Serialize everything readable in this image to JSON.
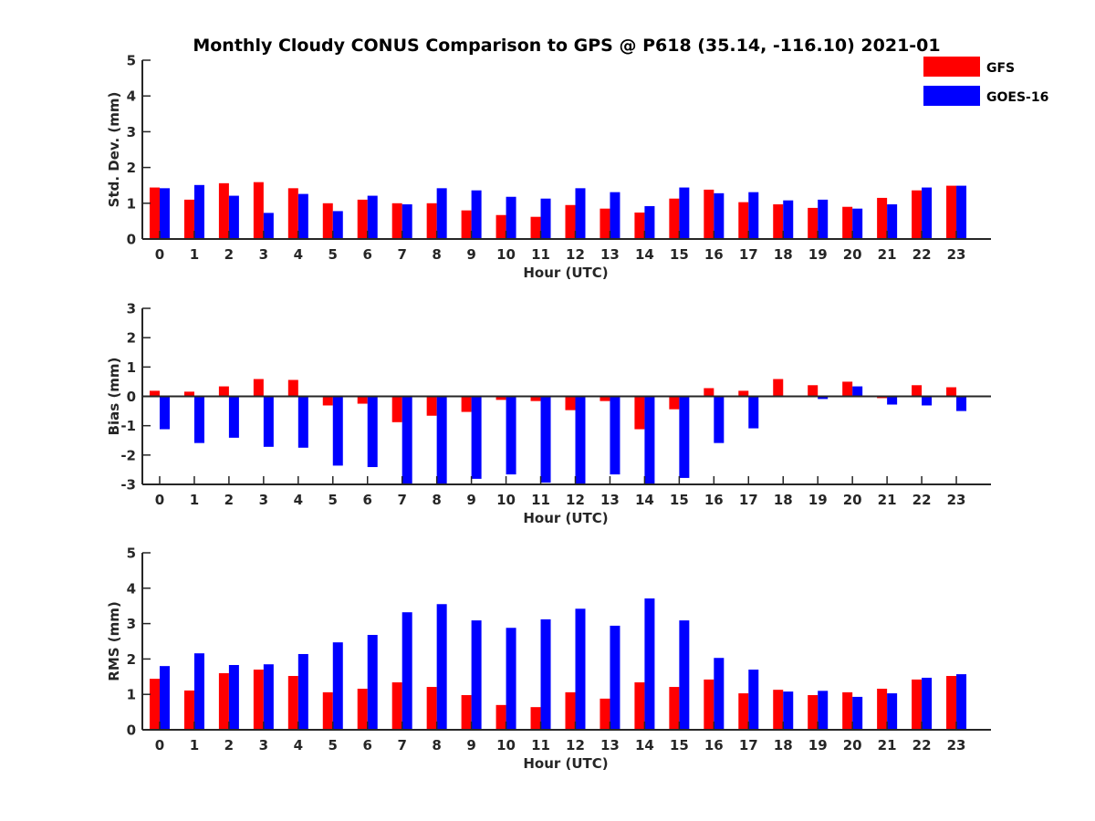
{
  "chart_data": {
    "type": "bar",
    "title": "Monthly Cloudy CONUS Comparison to GPS @ P618 (35.14, -116.10) 2021-01",
    "legend": {
      "placement": "top-right",
      "entries": [
        {
          "name": "GFS",
          "color": "#ff0000"
        },
        {
          "name": "GOES-16",
          "color": "#0000ff"
        }
      ]
    },
    "categories": [
      0,
      1,
      2,
      3,
      4,
      5,
      6,
      7,
      8,
      9,
      10,
      11,
      12,
      13,
      14,
      15,
      16,
      17,
      18,
      19,
      20,
      21,
      22,
      23
    ],
    "panels": [
      {
        "name": "std-dev",
        "xlabel": "Hour (UTC)",
        "ylabel": "Std. Dev. (mm)",
        "ylim": [
          0,
          5
        ],
        "yticks": [
          0,
          1,
          2,
          3,
          4,
          5
        ],
        "grid": false,
        "series": [
          {
            "name": "GFS",
            "values": [
              1.44,
              1.1,
              1.56,
              1.59,
              1.42,
              1.0,
              1.1,
              1.0,
              1.0,
              0.8,
              0.67,
              0.62,
              0.95,
              0.85,
              0.74,
              1.13,
              1.38,
              1.03,
              0.97,
              0.87,
              0.9,
              1.15,
              1.36,
              1.49
            ]
          },
          {
            "name": "GOES-16",
            "values": [
              1.42,
              1.51,
              1.21,
              0.73,
              1.26,
              0.78,
              1.21,
              0.97,
              1.42,
              1.36,
              1.18,
              1.13,
              1.42,
              1.31,
              0.92,
              1.44,
              1.28,
              1.31,
              1.08,
              1.1,
              0.85,
              0.97,
              1.44,
              1.49
            ]
          }
        ]
      },
      {
        "name": "bias",
        "xlabel": "Hour (UTC)",
        "ylabel": "Bias (mm)",
        "ylim": [
          -3,
          3
        ],
        "yticks": [
          -3,
          -2,
          -1,
          0,
          1,
          2,
          3
        ],
        "grid": false,
        "zero_line": true,
        "series": [
          {
            "name": "GFS",
            "values": [
              0.19,
              0.16,
              0.34,
              0.59,
              0.56,
              -0.31,
              -0.25,
              -0.88,
              -0.66,
              -0.53,
              -0.12,
              -0.16,
              -0.47,
              -0.16,
              -1.12,
              -0.44,
              0.28,
              0.19,
              0.59,
              0.38,
              0.5,
              -0.06,
              0.38,
              0.31
            ]
          },
          {
            "name": "GOES-16",
            "values": [
              -1.12,
              -1.59,
              -1.41,
              -1.72,
              -1.75,
              -2.36,
              -2.41,
              -3.25,
              -3.45,
              -2.81,
              -2.66,
              -2.94,
              -3.3,
              -2.66,
              -3.5,
              -2.78,
              -1.59,
              -1.09,
              0.0,
              -0.09,
              0.34,
              -0.28,
              -0.31,
              -0.5
            ]
          }
        ]
      },
      {
        "name": "rms",
        "xlabel": "Hour (UTC)",
        "ylabel": "RMS (mm)",
        "ylim": [
          0,
          5
        ],
        "yticks": [
          0,
          1,
          2,
          3,
          4,
          5
        ],
        "grid": false,
        "series": [
          {
            "name": "GFS",
            "values": [
              1.44,
              1.11,
              1.6,
              1.7,
              1.52,
              1.06,
              1.16,
              1.34,
              1.21,
              0.98,
              0.7,
              0.64,
              1.06,
              0.88,
              1.34,
              1.21,
              1.42,
              1.03,
              1.13,
              0.98,
              1.06,
              1.16,
              1.42,
              1.52
            ]
          },
          {
            "name": "GOES-16",
            "values": [
              1.8,
              2.16,
              1.83,
              1.85,
              2.14,
              2.47,
              2.68,
              3.32,
              3.55,
              3.09,
              2.88,
              3.12,
              3.42,
              2.94,
              3.71,
              3.09,
              2.03,
              1.7,
              1.08,
              1.1,
              0.93,
              1.03,
              1.47,
              1.57
            ]
          }
        ]
      }
    ],
    "xlim": [
      -0.5,
      24
    ]
  }
}
